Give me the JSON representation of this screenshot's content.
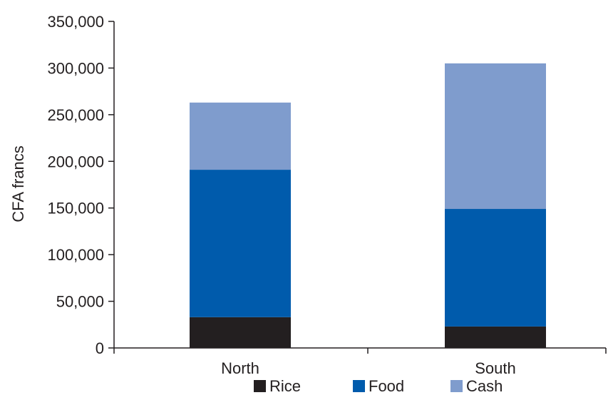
{
  "chart_data": {
    "type": "bar",
    "stacked": true,
    "categories": [
      "North",
      "South"
    ],
    "series": [
      {
        "name": "Rice",
        "color": "#231f20",
        "values": [
          33000,
          23000
        ]
      },
      {
        "name": "Food",
        "color": "#005bac",
        "values": [
          158000,
          126000
        ]
      },
      {
        "name": "Cash",
        "color": "#7f9ccd",
        "values": [
          72000,
          156000
        ]
      }
    ],
    "ylabel": "CFA francs",
    "xlabel": "",
    "ylim": [
      0,
      350000
    ],
    "yticks": [
      0,
      50000,
      100000,
      150000,
      200000,
      250000,
      300000,
      350000
    ],
    "ytick_labels": [
      "0",
      "50,000",
      "100,000",
      "150,000",
      "200,000",
      "250,000",
      "300,000",
      "350,000"
    ],
    "grid": false,
    "legend_position": "bottom"
  }
}
